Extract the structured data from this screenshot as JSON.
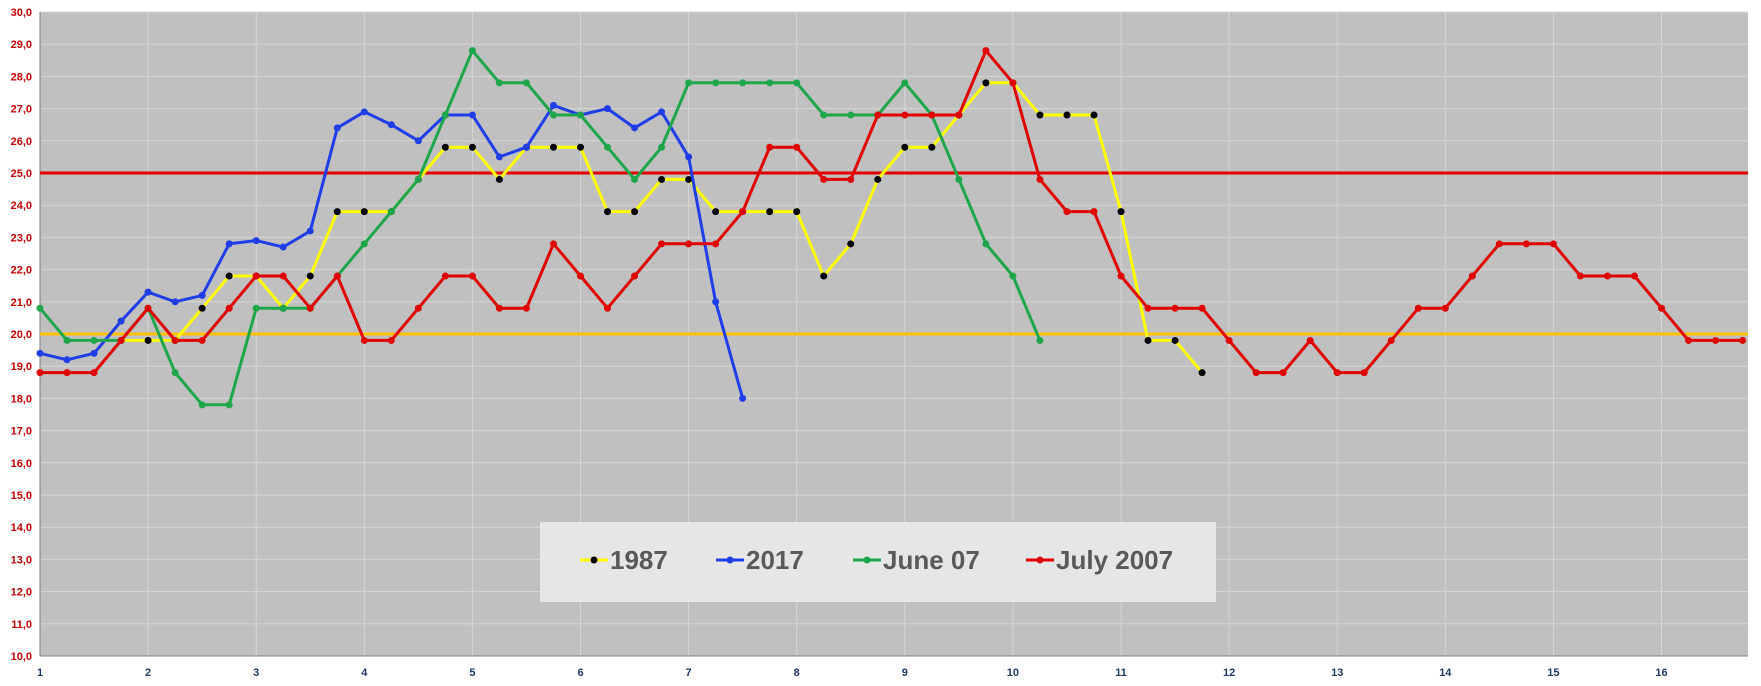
{
  "chart_data": {
    "type": "line",
    "title": "",
    "xlabel": "",
    "ylabel": "",
    "xlim": [
      1,
      16.8
    ],
    "ylim": [
      10,
      30
    ],
    "grid": true,
    "legend_position": "bottom-center",
    "background_color": "#c0c0c0",
    "x_ticks": [
      "1",
      "2",
      "3",
      "4",
      "5",
      "6",
      "7",
      "8",
      "9",
      "10",
      "11",
      "12",
      "13",
      "14",
      "15",
      "16"
    ],
    "y_ticks": [
      "10,0",
      "11,0",
      "12,0",
      "13,0",
      "14,0",
      "15,0",
      "16,0",
      "17,0",
      "18,0",
      "19,0",
      "20,0",
      "21,0",
      "22,0",
      "23,0",
      "24,0",
      "25,0",
      "26,0",
      "27,0",
      "28,0",
      "29,0",
      "30,0"
    ],
    "reference_lines": [
      {
        "y": 25,
        "color": "#e00000"
      },
      {
        "y": 20,
        "color": "#ffc000"
      }
    ],
    "series": [
      {
        "name": "1987",
        "color": "#ffff00",
        "marker_color": "#000000",
        "x": [
          1.75,
          2,
          2.25,
          2.5,
          2.75,
          3,
          3.25,
          3.5,
          3.75,
          4,
          4.25,
          4.5,
          4.75,
          5,
          5.25,
          5.5,
          5.75,
          6,
          6.25,
          6.5,
          6.75,
          7,
          7.25,
          7.5,
          7.75,
          8,
          8.25,
          8.5,
          8.75,
          9,
          9.25,
          9.5,
          9.75,
          10,
          10.25,
          10.5,
          10.75,
          11,
          11.25,
          11.5,
          11.75
        ],
        "y": [
          19.8,
          19.8,
          19.8,
          20.8,
          21.8,
          21.8,
          20.8,
          21.8,
          23.8,
          23.8,
          23.8,
          24.8,
          25.8,
          25.8,
          24.8,
          25.8,
          25.8,
          25.8,
          23.8,
          23.8,
          24.8,
          24.8,
          23.8,
          23.8,
          23.8,
          23.8,
          21.8,
          22.8,
          24.8,
          25.8,
          25.8,
          26.8,
          27.8,
          27.8,
          26.8,
          26.8,
          26.8,
          23.8,
          19.8,
          19.8,
          18.8
        ]
      },
      {
        "name": "2017",
        "color": "#1f3ee8",
        "marker_color": "#1f3ee8",
        "x": [
          1,
          1.25,
          1.5,
          1.75,
          2,
          2.25,
          2.5,
          2.75,
          3,
          3.25,
          3.5,
          3.75,
          4,
          4.25,
          4.5,
          4.75,
          5,
          5.25,
          5.5,
          5.75,
          6,
          6.25,
          6.5,
          6.75,
          7,
          7.25,
          7.5
        ],
        "y": [
          19.4,
          19.2,
          19.4,
          20.4,
          21.3,
          21.0,
          21.2,
          22.8,
          22.9,
          22.7,
          23.2,
          26.4,
          26.9,
          26.5,
          26.0,
          26.8,
          26.8,
          25.5,
          25.8,
          27.1,
          26.8,
          27.0,
          26.4,
          26.9,
          25.5,
          21.0,
          18.0
        ]
      },
      {
        "name": "June 07",
        "color": "#1ea64a",
        "marker_color": "#1ea64a",
        "x": [
          1,
          1.25,
          1.5,
          1.75,
          2,
          2.25,
          2.5,
          2.75,
          3,
          3.25,
          3.5,
          3.75,
          4,
          4.25,
          4.5,
          4.75,
          5,
          5.25,
          5.5,
          5.75,
          6,
          6.25,
          6.5,
          6.75,
          7,
          7.25,
          7.5,
          7.75,
          8,
          8.25,
          8.5,
          8.75,
          9,
          9.25,
          9.5,
          9.75,
          10,
          10.25
        ],
        "y": [
          20.8,
          19.8,
          19.8,
          19.8,
          20.8,
          18.8,
          17.8,
          17.8,
          20.8,
          20.8,
          20.8,
          21.8,
          22.8,
          23.8,
          24.8,
          26.8,
          28.8,
          27.8,
          27.8,
          26.8,
          26.8,
          25.8,
          24.8,
          25.8,
          27.8,
          27.8,
          27.8,
          27.8,
          27.8,
          26.8,
          26.8,
          26.8,
          27.8,
          26.8,
          24.8,
          22.8,
          21.8,
          19.8
        ]
      },
      {
        "name": "July 2007",
        "color": "#e00000",
        "marker_color": "#e00000",
        "x": [
          1,
          1.25,
          1.5,
          1.75,
          2,
          2.25,
          2.5,
          2.75,
          3,
          3.25,
          3.5,
          3.75,
          4,
          4.25,
          4.5,
          4.75,
          5,
          5.25,
          5.5,
          5.75,
          6,
          6.25,
          6.5,
          6.75,
          7,
          7.25,
          7.5,
          7.75,
          8,
          8.25,
          8.5,
          8.75,
          9,
          9.25,
          9.5,
          9.75,
          10,
          10.25,
          10.5,
          10.75,
          11,
          11.25,
          11.5,
          11.75,
          12,
          12.25,
          12.5,
          12.75,
          13,
          13.25,
          13.5,
          13.75,
          14,
          14.25,
          14.5,
          14.75,
          15,
          15.25,
          15.5,
          15.75,
          16,
          16.25,
          16.5,
          16.75
        ],
        "y": [
          18.8,
          18.8,
          18.8,
          19.8,
          20.8,
          19.8,
          19.8,
          20.8,
          21.8,
          21.8,
          20.8,
          21.8,
          19.8,
          19.8,
          20.8,
          21.8,
          21.8,
          20.8,
          20.8,
          22.8,
          21.8,
          20.8,
          21.8,
          22.8,
          22.8,
          22.8,
          23.8,
          25.8,
          25.8,
          24.8,
          24.8,
          26.8,
          26.8,
          26.8,
          26.8,
          28.8,
          27.8,
          24.8,
          23.8,
          23.8,
          21.8,
          20.8,
          20.8,
          20.8,
          19.8,
          18.8,
          18.8,
          19.8,
          18.8,
          18.8,
          19.8,
          20.8,
          20.8,
          21.8,
          22.8,
          22.8,
          22.8,
          21.8,
          21.8,
          21.8,
          20.8,
          19.8,
          19.8,
          19.8
        ]
      }
    ]
  }
}
